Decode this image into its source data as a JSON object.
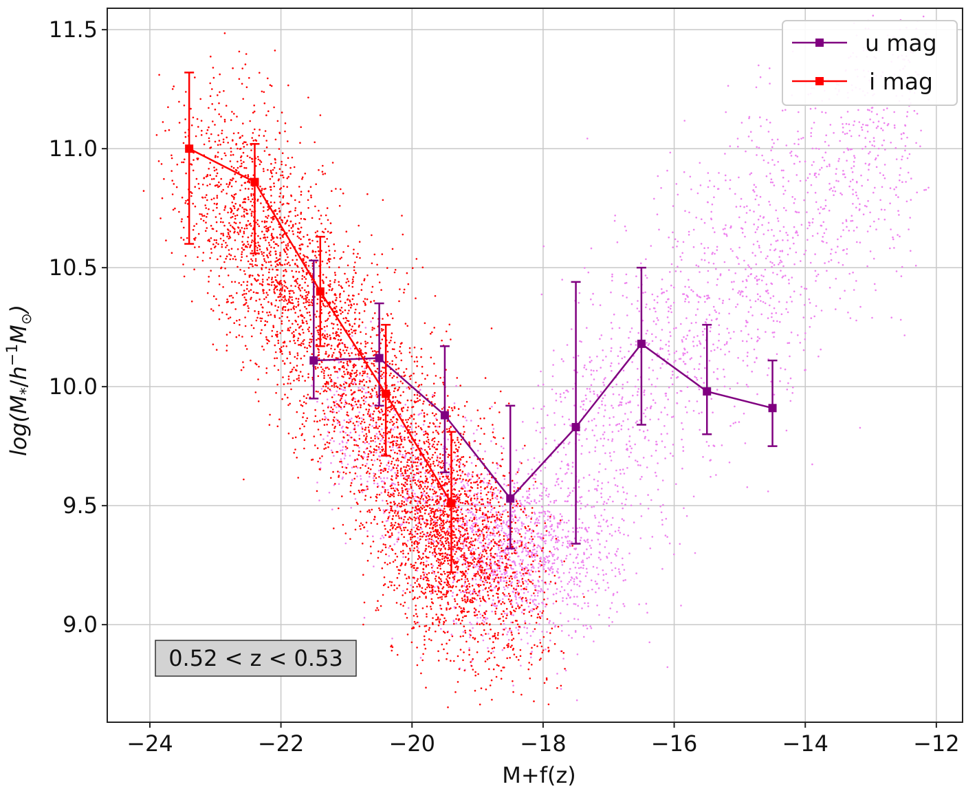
{
  "chart_data": {
    "type": "scatter",
    "title": "",
    "xlabel": "M+f(z)",
    "ylabel": "log(M*/h⁻¹M⊙)",
    "ylabel_parts": {
      "pre": "log(",
      "M": "M",
      "star": "*",
      "h": "h",
      "exp": "−1",
      "Msun": "M",
      "sun": "⊙",
      "close": ")"
    },
    "xlim": [
      -24.65,
      -11.6
    ],
    "ylim": [
      8.59,
      11.59
    ],
    "xticks": [
      -24,
      -22,
      -20,
      -18,
      -16,
      -14,
      -12
    ],
    "xtick_labels": [
      "−24",
      "−22",
      "−20",
      "−18",
      "−16",
      "−14",
      "−12"
    ],
    "yticks": [
      9.0,
      9.5,
      10.0,
      10.5,
      11.0,
      11.5
    ],
    "ytick_labels": [
      "9.0",
      "9.5",
      "10.0",
      "10.5",
      "11.0",
      "11.5"
    ],
    "grid": true,
    "legend_position": "top-right",
    "annotation": "0.52 < z < 0.53",
    "series": [
      {
        "name": "u mag",
        "color": "#800080",
        "scatter_color": "#ee82ee",
        "marker": "square",
        "x": [
          -21.5,
          -20.5,
          -19.5,
          -18.5,
          -17.5,
          -16.5,
          -15.5,
          -14.5
        ],
        "y": [
          10.11,
          10.12,
          9.88,
          9.53,
          9.83,
          10.18,
          9.98,
          9.91
        ],
        "yerr_low": [
          9.95,
          9.92,
          9.64,
          9.32,
          9.34,
          9.84,
          9.8,
          9.75
        ],
        "yerr_high": [
          10.53,
          10.35,
          10.17,
          9.92,
          10.44,
          10.5,
          10.26,
          10.11
        ]
      },
      {
        "name": "i mag",
        "color": "#ff0000",
        "scatter_color": "#ff0000",
        "marker": "square",
        "x": [
          -23.4,
          -22.4,
          -21.4,
          -20.4,
          -19.4
        ],
        "y": [
          11.0,
          10.86,
          10.4,
          9.97,
          9.51
        ],
        "yerr_low": [
          10.6,
          10.56,
          10.17,
          9.71,
          9.22
        ],
        "yerr_high": [
          11.32,
          11.02,
          10.63,
          10.26,
          9.81
        ]
      }
    ]
  }
}
